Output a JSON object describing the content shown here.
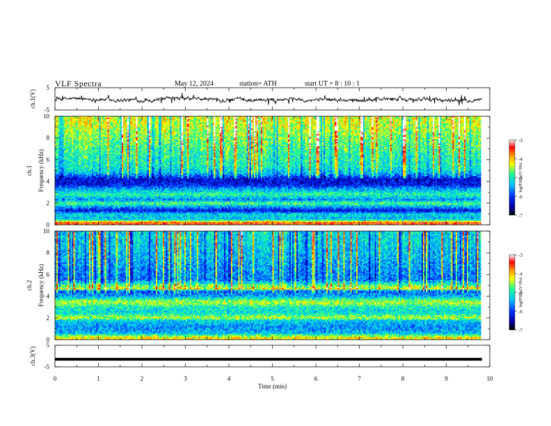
{
  "header": {
    "title": "VLF  Spectra",
    "date": "May 12, 2024",
    "station": "station= ATH",
    "start": "start  UT  =   8  : 10 : 1"
  },
  "chart_data": [
    {
      "type": "line",
      "name": "ch1-waveform",
      "ylabel": "ch.1(V)",
      "ylim": [
        -5,
        5
      ],
      "yticks": [
        "5",
        "-5"
      ],
      "xlim": [
        0,
        10
      ],
      "color": "#000000"
    },
    {
      "type": "heatmap",
      "name": "ch1-spectrogram",
      "ylabel": "ch.1\nFrequency  (kHz)",
      "ylim": [
        0,
        10
      ],
      "yticks": [
        "10",
        "8",
        "6",
        "4",
        "2",
        "0"
      ],
      "xlim": [
        0,
        9.8
      ],
      "colorbar": {
        "label": "log(PSD) (V²/Hz)",
        "range": [
          -7,
          -3
        ],
        "ticks": [
          "-3",
          "-4",
          "-5",
          "-6",
          "-7"
        ]
      },
      "profile_khz_value": [
        [
          0.2,
          -3.6
        ],
        [
          0.5,
          -5.4
        ],
        [
          1.0,
          -5.2
        ],
        [
          1.3,
          -6.3
        ],
        [
          1.6,
          -5.6
        ],
        [
          2.0,
          -4.7
        ],
        [
          2.3,
          -5.6
        ],
        [
          2.8,
          -4.9
        ],
        [
          3.3,
          -5.5
        ],
        [
          3.7,
          -6.2
        ],
        [
          4.2,
          -6.3
        ],
        [
          4.8,
          -5.3
        ],
        [
          5.5,
          -5.0
        ],
        [
          6.5,
          -4.9
        ],
        [
          7.5,
          -4.7
        ],
        [
          8.5,
          -4.5
        ],
        [
          9.5,
          -4.3
        ]
      ]
    },
    {
      "type": "heatmap",
      "name": "ch2-spectrogram",
      "ylabel": "ch.2\nFrequency  (kHz)",
      "ylim": [
        0,
        10
      ],
      "yticks": [
        "10",
        "8",
        "6",
        "4",
        "2",
        "0"
      ],
      "xlim": [
        0,
        9.8
      ],
      "colorbar": {
        "label": "log(PSD) (V²/Hz)",
        "range": [
          -7,
          -3
        ],
        "ticks": [
          "-3",
          "-4",
          "-5",
          "-6",
          "-7"
        ]
      },
      "profile_khz_value": [
        [
          0.2,
          -4.2
        ],
        [
          0.6,
          -5.4
        ],
        [
          1.2,
          -5.6
        ],
        [
          1.8,
          -5.2
        ],
        [
          2.0,
          -4.4
        ],
        [
          2.5,
          -5.2
        ],
        [
          3.0,
          -5.0
        ],
        [
          3.5,
          -4.4
        ],
        [
          4.0,
          -5.5
        ],
        [
          4.5,
          -5.8
        ],
        [
          4.7,
          -4.2
        ],
        [
          5.5,
          -5.7
        ],
        [
          6.5,
          -5.6
        ],
        [
          7.5,
          -5.4
        ],
        [
          8.5,
          -5.3
        ],
        [
          9.5,
          -5.2
        ]
      ]
    },
    {
      "type": "line",
      "name": "ch3-waveform",
      "ylabel": "ch.3(V)",
      "ylim": [
        -5,
        5
      ],
      "yticks": [
        "5",
        "-5"
      ],
      "xlim": [
        0,
        10
      ],
      "value": -1.5,
      "color": "#000000"
    }
  ],
  "xaxis": {
    "label": "Time  (min)",
    "ticks": [
      "0",
      "1",
      "2",
      "3",
      "4",
      "5",
      "6",
      "7",
      "8",
      "9",
      "10"
    ]
  },
  "colors": {
    "colormap": [
      "#000000",
      "#0000aa",
      "#0030ff",
      "#00c0ff",
      "#20ff90",
      "#ffff00",
      "#ff9000",
      "#ff0000",
      "#ffffff"
    ]
  }
}
